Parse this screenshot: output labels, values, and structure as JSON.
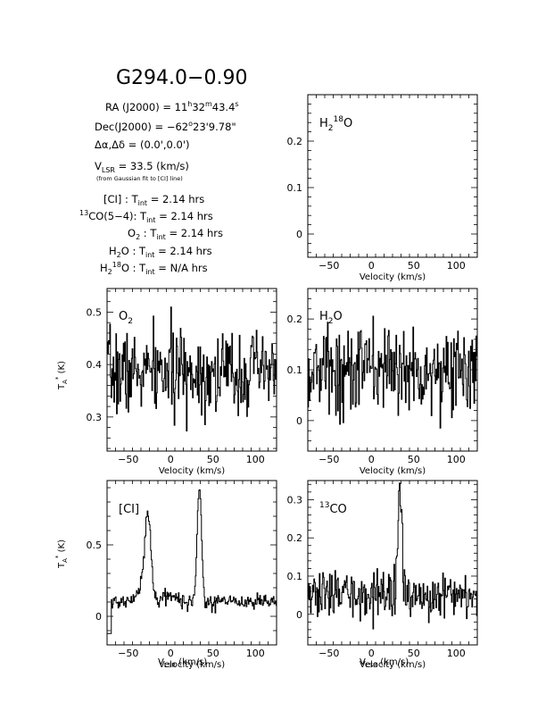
{
  "header": {
    "source": "G294.0−0.90",
    "ra": "RA (J2000) = 11h32m43.4s",
    "dec": "Dec(J2000) = −62°23'9.78\"",
    "offset": "Δα,Δδ = (0.0',0.0')",
    "vlsr": "VLSR = 33.5 (km/s)",
    "vlsr_note": "(from Gaussian fit to [CI] line)",
    "tint": [
      {
        "line": "[CI]",
        "value": "2.14 hrs"
      },
      {
        "line": "13CO(5−4)",
        "value": "2.14 hrs"
      },
      {
        "line": "O2",
        "value": "2.14 hrs"
      },
      {
        "line": "H2O",
        "value": "2.14 hrs"
      },
      {
        "line": "H2 18O",
        "value": "N/A hrs"
      }
    ]
  },
  "axis_labels": {
    "x_velocity": "Velocity (km/s)",
    "x_vlsr": "VLSR (km/s)",
    "y": "TA* (K)"
  },
  "chart_data": [
    {
      "type": "line",
      "panel": "H2 18O",
      "label": "H2 18O",
      "xlim": [
        -75,
        125
      ],
      "ylim": [
        -0.05,
        0.3
      ],
      "xticks": [
        -50,
        0,
        50,
        100
      ],
      "yticks": [
        0,
        0.1,
        0.2
      ],
      "xlabel": "Velocity (km/s)",
      "ylabel": "",
      "series": []
    },
    {
      "type": "line",
      "panel": "O2",
      "label": "O2",
      "xlim": [
        -75,
        125
      ],
      "ylim": [
        0.235,
        0.545
      ],
      "xticks": [
        -50,
        0,
        50,
        100
      ],
      "yticks": [
        0.3,
        0.4,
        0.5
      ],
      "xlabel": "Velocity (km/s)",
      "ylabel": "TA* (K)",
      "noise": {
        "base": 0.385,
        "sigma": 0.04,
        "seed": 7
      }
    },
    {
      "type": "line",
      "panel": "H2O",
      "label": "H2O",
      "xlim": [
        -75,
        125
      ],
      "ylim": [
        -0.06,
        0.26
      ],
      "xticks": [
        -50,
        0,
        50,
        100
      ],
      "yticks": [
        0,
        0.1,
        0.2
      ],
      "xlabel": "Velocity (km/s)",
      "ylabel": "",
      "noise": {
        "base": 0.1,
        "sigma": 0.045,
        "seed": 13
      }
    },
    {
      "type": "line",
      "panel": "[CI]",
      "label": "[CI]",
      "xlim": [
        -75,
        125
      ],
      "ylim": [
        -0.2,
        0.95
      ],
      "xticks": [
        -50,
        0,
        50,
        100
      ],
      "yticks": [
        0,
        0.5
      ],
      "xlabel": "Velocity (km/s)",
      "ylabel": "TA* (K)",
      "noise": {
        "base": 0.1,
        "sigma": 0.025,
        "seed": 21
      },
      "features": [
        {
          "center": -27,
          "peak": 0.55,
          "width": 3.5
        },
        {
          "center": -33,
          "peak": 0.12,
          "width": 6
        },
        {
          "center": -5,
          "peak": 0.05,
          "width": 8
        },
        {
          "center": 33.5,
          "peak": 0.8,
          "width": 2.6
        }
      ],
      "step": {
        "x_end": -70,
        "value": -0.12
      }
    },
    {
      "type": "line",
      "panel": "13CO",
      "label": "13CO",
      "xlim": [
        -75,
        125
      ],
      "ylim": [
        -0.08,
        0.35
      ],
      "xticks": [
        -50,
        0,
        50,
        100
      ],
      "yticks": [
        0,
        0.1,
        0.2,
        0.3
      ],
      "xlabel": "Velocity (km/s)",
      "ylabel": "",
      "noise": {
        "base": 0.05,
        "sigma": 0.03,
        "seed": 33
      },
      "features": [
        {
          "center": 33.5,
          "peak": 0.27,
          "width": 2.3
        }
      ]
    }
  ]
}
